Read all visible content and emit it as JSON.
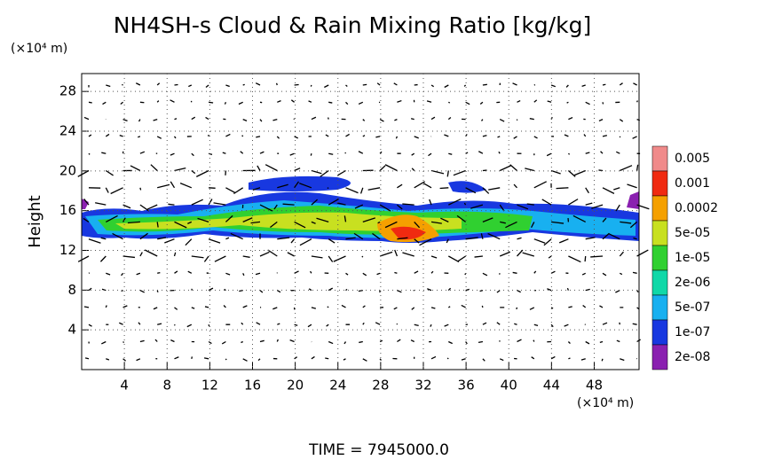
{
  "chart_data": {
    "type": "contour",
    "title": "NH4SH-s Cloud & Rain Mixing Ratio [kg/kg]",
    "y_label": "Height",
    "x_unit_label": "(×10⁴ m)",
    "y_unit_label": "(×10⁴ m)",
    "footer": "TIME = 7945000.0",
    "xlim": [
      0,
      52.2
    ],
    "xticks": [
      4,
      8,
      12,
      16,
      20,
      24,
      28,
      32,
      36,
      40,
      44,
      48
    ],
    "ylim": [
      0,
      29.8
    ],
    "yticks": [
      4,
      8,
      12,
      16,
      20,
      24,
      28
    ],
    "grid": true,
    "colorbar": {
      "labels": [
        "0.005",
        "0.001",
        "0.0002",
        "5e-05",
        "1e-05",
        "2e-06",
        "5e-07",
        "1e-07",
        "2e-08"
      ],
      "colors": [
        "#f08a8a",
        "#f02a10",
        "#f5a000",
        "#c8e020",
        "#30d030",
        "#10d8a8",
        "#18b0f0",
        "#1838e0",
        "#8a20b0"
      ]
    }
  }
}
